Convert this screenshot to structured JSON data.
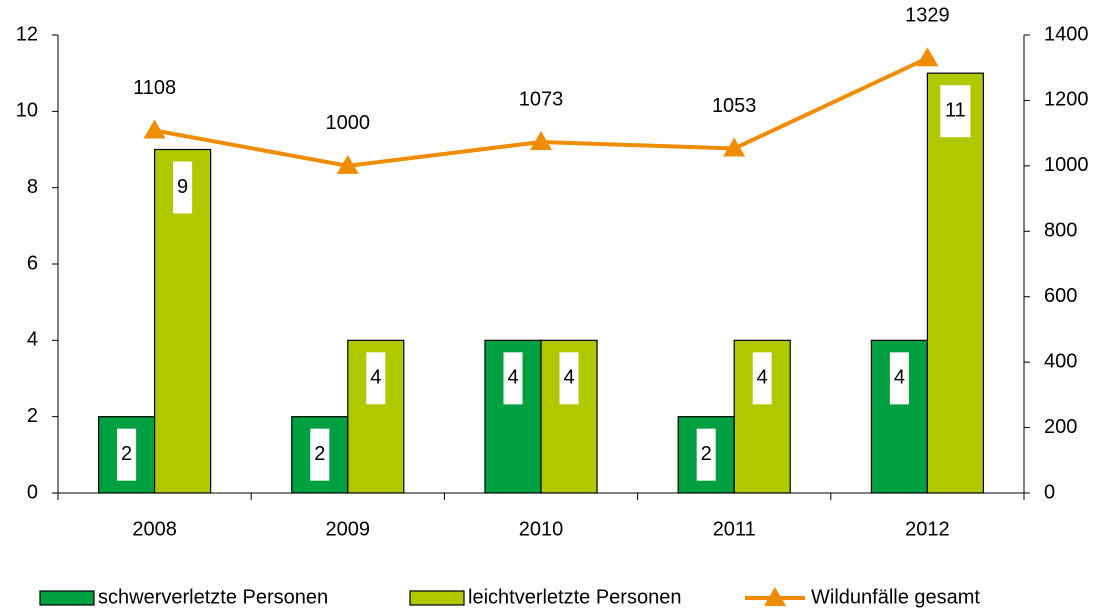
{
  "chart_data": {
    "type": "bar",
    "categories": [
      "2008",
      "2009",
      "2010",
      "2011",
      "2012"
    ],
    "series": [
      {
        "name": "schwerverletzte Personen",
        "color": "#00a040",
        "values": [
          2,
          2,
          4,
          2,
          4
        ]
      },
      {
        "name": "leichtverletzte Personen",
        "color": "#b0c800",
        "values": [
          9,
          4,
          4,
          4,
          11
        ]
      },
      {
        "name": "Wildunfälle gesamt",
        "color": "#f08c00",
        "type": "line",
        "axis": "y2",
        "values": [
          1108,
          1000,
          1073,
          1053,
          1329
        ]
      }
    ],
    "ylim": [
      0,
      12
    ],
    "yticks": [
      0,
      2,
      4,
      6,
      8,
      10,
      12
    ],
    "y2lim": [
      0,
      1400
    ],
    "y2ticks": [
      0,
      200,
      400,
      600,
      800,
      1000,
      1200,
      1400
    ],
    "grid": false,
    "legend": "bottom"
  }
}
